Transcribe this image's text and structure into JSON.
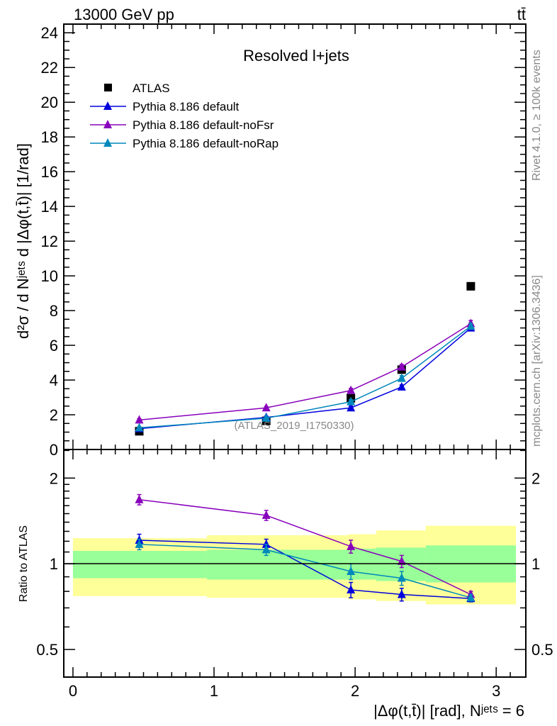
{
  "header": {
    "left": "13000 GeV pp",
    "right": "tt̄"
  },
  "side_text": {
    "rivet": "Rivet 4.1.0, ≥ 100k events",
    "mcplots": "mcplots.cern.ch [arXiv:1306.3436]"
  },
  "watermark": "(ATLAS_2019_I1750330)",
  "colors": {
    "ATLAS": "#000000",
    "default": "#0000dd",
    "noFsr": "#8800bb",
    "noRap": "#0088bb",
    "band_total": "#ffff99",
    "band_stat": "#99ff99"
  },
  "chart_data": [
    {
      "type": "line",
      "title": "Resolved l+jets",
      "ylabel": "d²σ / d Nʲᵉᵗˢ d |Δφ(t,t̄)| [1/rad]",
      "xlim": [
        -0.065,
        3.21
      ],
      "ylim": [
        0,
        24.5
      ],
      "yticks": [
        "0",
        "2",
        "4",
        "6",
        "8",
        "10",
        "12",
        "14",
        "16",
        "18",
        "20",
        "22",
        "24"
      ],
      "legend_position": "top-left",
      "x": [
        0.47,
        1.37,
        1.97,
        2.33,
        2.82
      ],
      "series": [
        {
          "name": "ATLAS",
          "key": "ATLAS",
          "marker": "square",
          "values": [
            1.05,
            1.65,
            2.95,
            4.6,
            9.4
          ],
          "errors": [
            0.1,
            0.1,
            0.15,
            0.2,
            0.2
          ]
        },
        {
          "name": "Pythia 8.186 default",
          "key": "default",
          "marker": "triangle",
          "values": [
            1.2,
            1.85,
            2.4,
            3.6,
            7.0
          ],
          "errors": [
            0.05,
            0.07,
            0.1,
            0.12,
            0.15
          ]
        },
        {
          "name": "Pythia 8.186 default-noFsr",
          "key": "noFsr",
          "marker": "triangle",
          "values": [
            1.7,
            2.4,
            3.4,
            4.75,
            7.25
          ],
          "errors": [
            0.07,
            0.08,
            0.12,
            0.15,
            0.18
          ]
        },
        {
          "name": "Pythia 8.186 default-noRap",
          "key": "noRap",
          "marker": "triangle",
          "values": [
            1.25,
            1.8,
            2.75,
            4.1,
            7.1
          ],
          "errors": [
            0.05,
            0.07,
            0.12,
            0.15,
            0.15
          ]
        }
      ]
    },
    {
      "type": "line",
      "ylabel": "Ratio to ATLAS",
      "xlabel": "|Δφ(t,t̄)| [rad], Nʲᵉᵗˢ = 6",
      "yscale": "log",
      "xlim": [
        -0.065,
        3.21
      ],
      "ylim": [
        0.4,
        2.52
      ],
      "xticks": [
        "0",
        "1",
        "2",
        "3"
      ],
      "yticks": [
        "0.5",
        "1",
        "2"
      ],
      "x": [
        0.47,
        1.37,
        1.97,
        2.33,
        2.82
      ],
      "bands": {
        "edges": [
          0,
          0.95,
          1.95,
          2.15,
          2.5,
          3.14
        ],
        "total": [
          [
            0.77,
            1.23
          ],
          [
            0.76,
            1.26
          ],
          [
            0.75,
            1.27
          ],
          [
            0.74,
            1.31
          ],
          [
            0.72,
            1.36
          ]
        ],
        "stat": [
          [
            0.89,
            1.11
          ],
          [
            0.88,
            1.12
          ],
          [
            0.88,
            1.13
          ],
          [
            0.87,
            1.14
          ],
          [
            0.86,
            1.16
          ]
        ]
      },
      "series": [
        {
          "name": "Pythia 8.186 default",
          "key": "default",
          "values": [
            1.21,
            1.17,
            0.81,
            0.78,
            0.755
          ],
          "errors": [
            0.06,
            0.05,
            0.05,
            0.04,
            0.02
          ]
        },
        {
          "name": "Pythia 8.186 default-noFsr",
          "key": "noFsr",
          "values": [
            1.68,
            1.48,
            1.15,
            1.02,
            0.78
          ],
          "errors": [
            0.07,
            0.06,
            0.06,
            0.05,
            0.02
          ]
        },
        {
          "name": "Pythia 8.186 default-noRap",
          "key": "noRap",
          "values": [
            1.17,
            1.12,
            0.94,
            0.89,
            0.76
          ],
          "errors": [
            0.05,
            0.05,
            0.06,
            0.05,
            0.02
          ]
        }
      ]
    }
  ]
}
